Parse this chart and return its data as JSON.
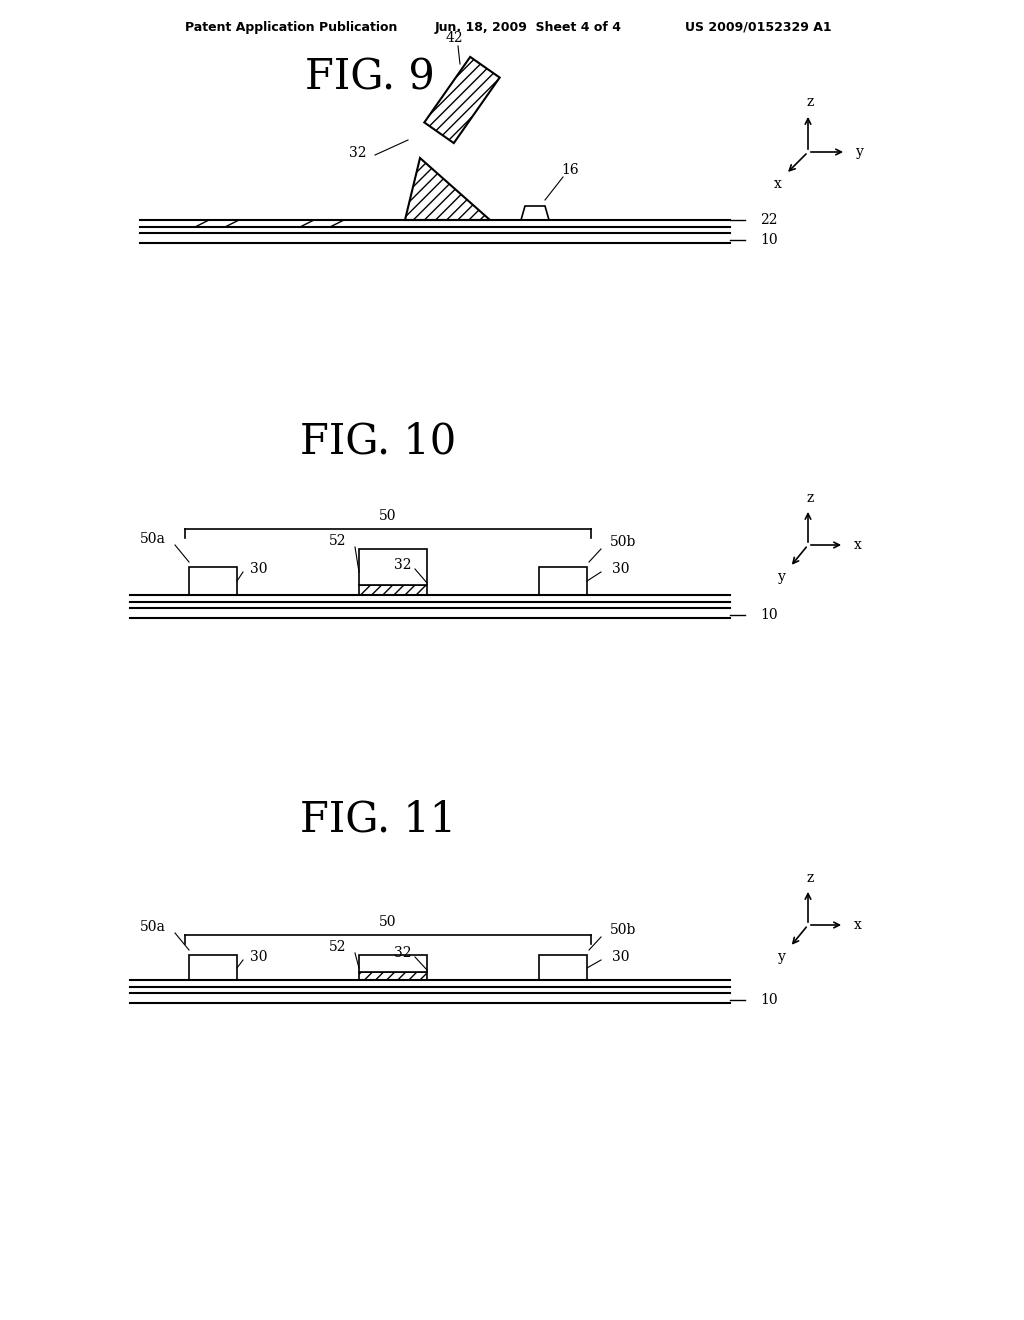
{
  "header_left": "Patent Application Publication",
  "header_mid": "Jun. 18, 2009  Sheet 4 of 4",
  "header_right": "US 2009/0152329 A1",
  "fig9_title": "FIG. 9",
  "fig10_title": "FIG. 10",
  "fig11_title": "FIG. 11",
  "bg_color": "#ffffff",
  "line_color": "#000000"
}
